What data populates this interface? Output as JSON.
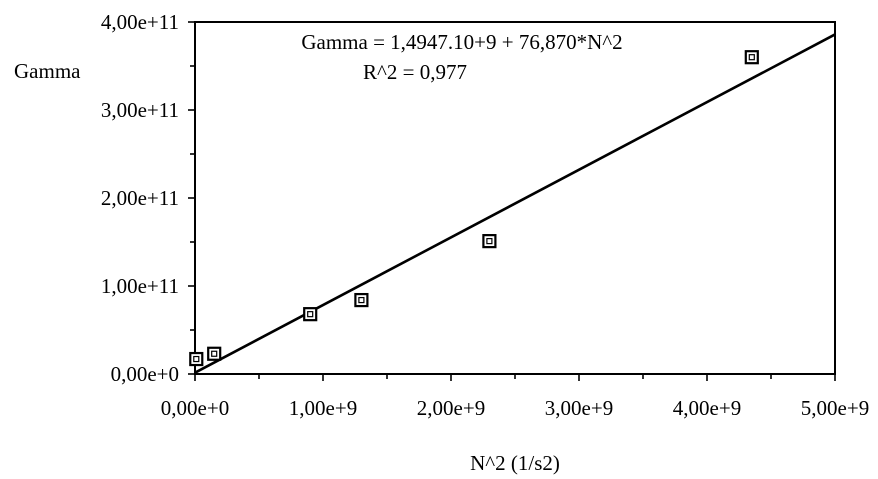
{
  "chart_data": {
    "type": "scatter",
    "title": "",
    "equation": "Gamma = 1,4947.10+9 + 76,870*N^2",
    "r_squared": "R^2 = 0,977",
    "xlabel": "N^2 (1/s2)",
    "ylabel": "Gamma",
    "xlim": [
      0,
      5000000000
    ],
    "ylim": [
      0,
      400000000000
    ],
    "x_ticks": [
      {
        "value": 0,
        "label": "0,00e+0"
      },
      {
        "value": 1000000000,
        "label": "1,00e+9"
      },
      {
        "value": 2000000000,
        "label": "2,00e+9"
      },
      {
        "value": 3000000000,
        "label": "3,00e+9"
      },
      {
        "value": 4000000000,
        "label": "4,00e+9"
      },
      {
        "value": 5000000000,
        "label": "5,00e+9"
      }
    ],
    "y_ticks": [
      {
        "value": 0,
        "label": "0,00e+0"
      },
      {
        "value": 100000000000,
        "label": "1,00e+11"
      },
      {
        "value": 200000000000,
        "label": "2,00e+11"
      },
      {
        "value": 300000000000,
        "label": "3,00e+11"
      },
      {
        "value": 400000000000,
        "label": "4,00e+11"
      }
    ],
    "points": [
      {
        "x": 10000000,
        "y": 17000000000
      },
      {
        "x": 150000000,
        "y": 23000000000
      },
      {
        "x": 900000000,
        "y": 68000000000
      },
      {
        "x": 1300000000,
        "y": 84000000000
      },
      {
        "x": 2300000000,
        "y": 151000000000
      },
      {
        "x": 4350000000,
        "y": 360000000000
      }
    ],
    "fit_line": {
      "intercept": 1494700000,
      "slope": 76.87
    },
    "grid": false,
    "marker": "square"
  }
}
